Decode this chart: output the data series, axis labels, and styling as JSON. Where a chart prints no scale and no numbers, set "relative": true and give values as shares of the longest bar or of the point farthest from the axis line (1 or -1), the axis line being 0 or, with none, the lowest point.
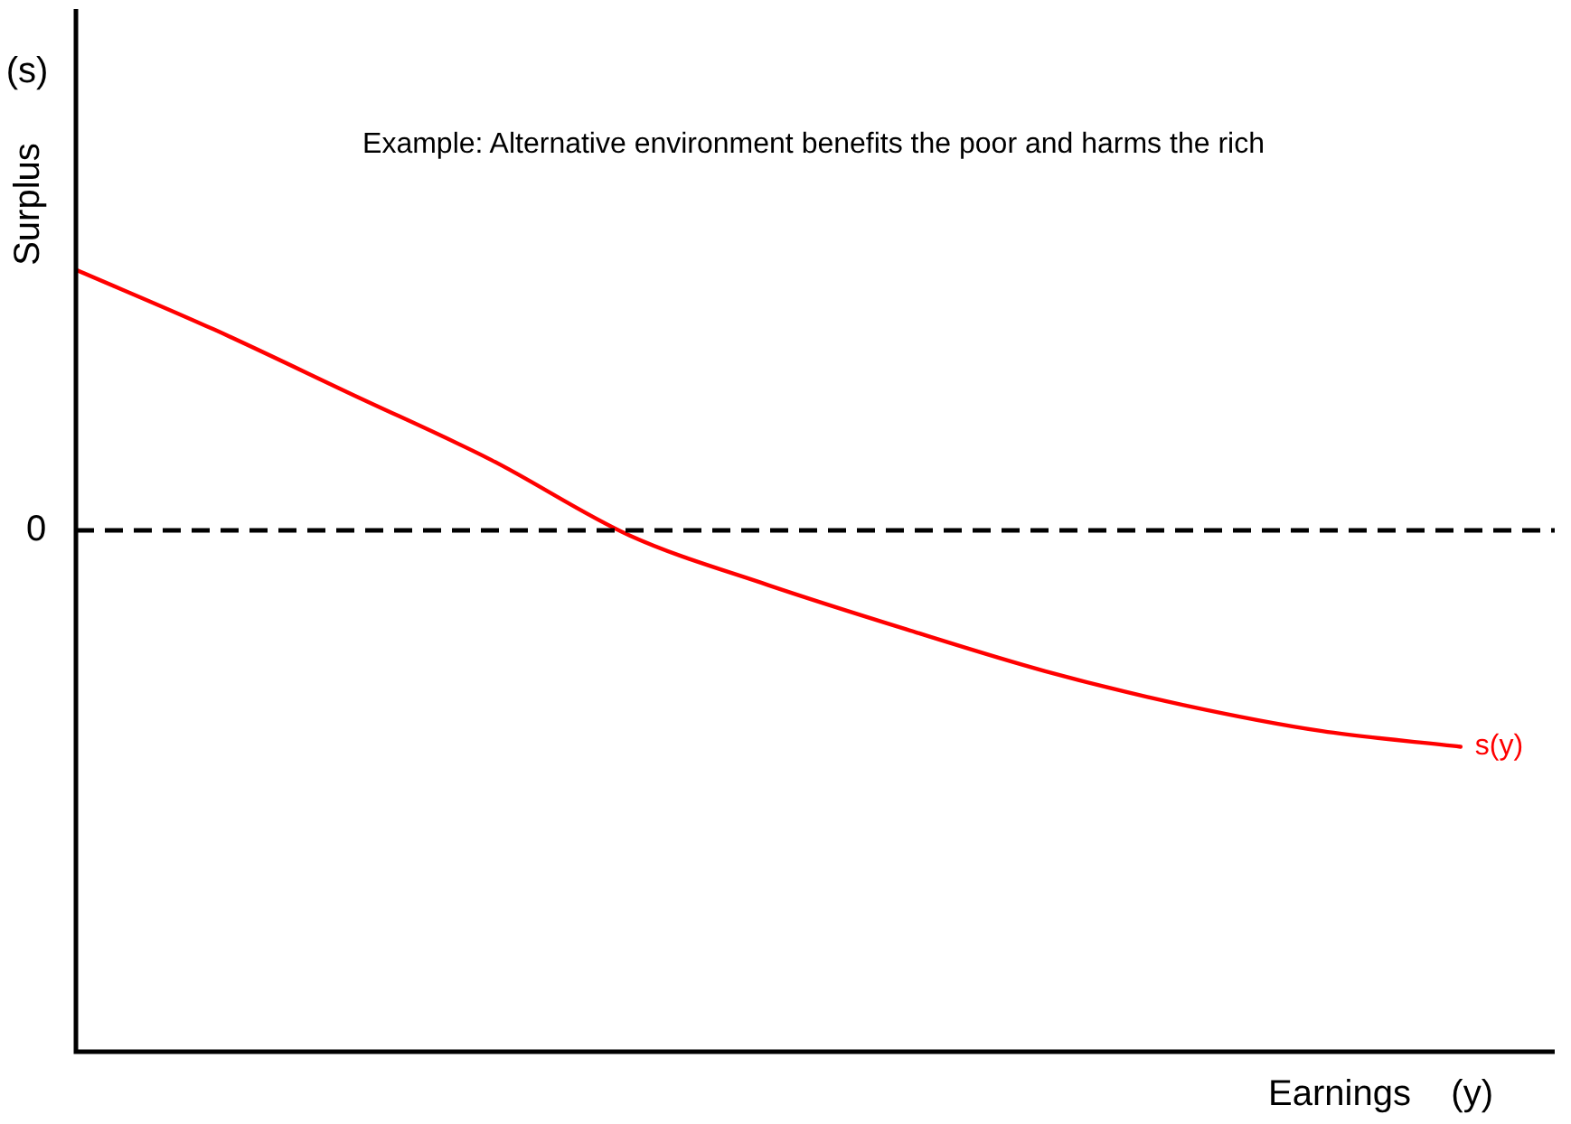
{
  "chart_data": {
    "type": "line",
    "title": "Example: Alternative environment benefits the poor and harms the rich",
    "ylabel": "Surplus",
    "annotations": [
      "(s)",
      "Earnings    (y)"
    ],
    "relative": true,
    "legend": false,
    "marker": "none",
    "line_style": "solid",
    "categories": [
      null,
      null,
      null,
      null,
      null,
      null,
      null,
      null,
      null,
      null,
      null
    ],
    "series": [
      {
        "name": "s(y)",
        "color": "#ff0000",
        "values": [
          1,
          0.77,
          0.52,
          0.27,
          -0.02,
          -0.21,
          -0.38,
          -0.54,
          -0.67,
          -0.77,
          -0.83
        ]
      }
    ],
    "ref_lines": [
      {
        "axis": "y",
        "value": 0,
        "label": "0",
        "color": "#000000",
        "line_style": "dashed"
      }
    ]
  }
}
